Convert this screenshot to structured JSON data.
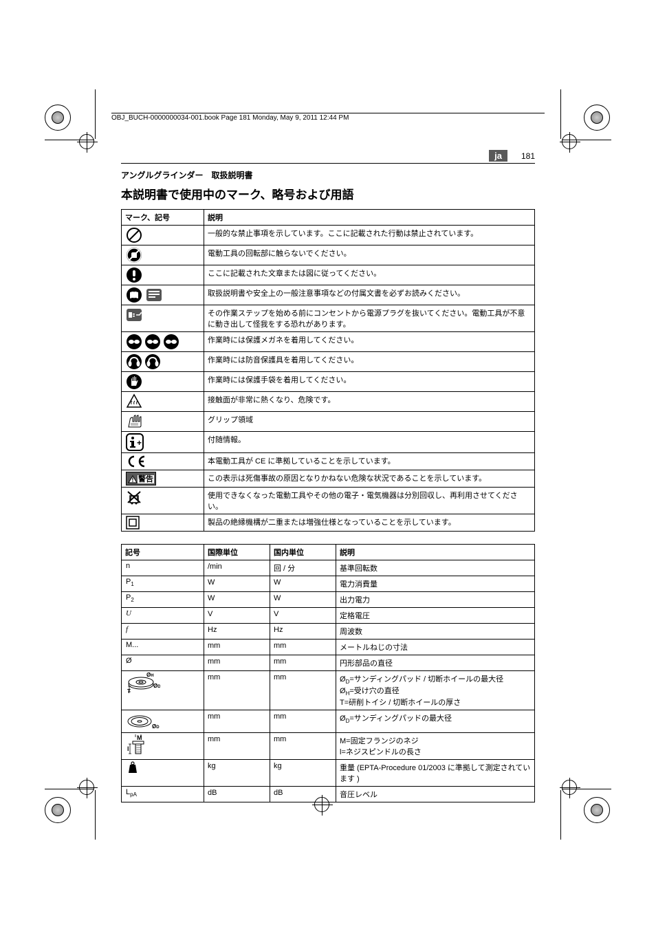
{
  "header_text": "OBJ_BUCH-0000000034-001.book  Page 181  Monday, May 9, 2011  12:44 PM",
  "lang": "ja",
  "page_number": "181",
  "subtitle": "アングルグラインダー　取扱説明書",
  "main_title": "本説明書で使用中のマーク、略号および用語",
  "table1": {
    "head": [
      "マーク、記号",
      "説明"
    ],
    "rows": [
      {
        "sym": "prohibit",
        "desc": "一般的な禁止事項を示しています。ここに記載された行動は禁止されています。"
      },
      {
        "sym": "no-touch",
        "desc": "電動工具の回転部に触らないでください。"
      },
      {
        "sym": "follow",
        "desc": "ここに記載された文章または図に従ってください。"
      },
      {
        "sym": "manual",
        "desc": "取扱説明書や安全上の一般注意事項などの付属文書を必ずお読みください。"
      },
      {
        "sym": "unplug",
        "desc": "その作業ステップを始める前にコンセントから電源プラグを抜いてください。電動工具が不意に動き出して怪我をする恐れがあります。"
      },
      {
        "sym": "goggles",
        "desc": "作業時には保護メガネを着用してください。"
      },
      {
        "sym": "earmuffs",
        "desc": "作業時には防音保護具を着用してください。"
      },
      {
        "sym": "gloves",
        "desc": "作業時には保護手袋を着用してください。"
      },
      {
        "sym": "hot",
        "desc": "接触面が非常に熱くなり、危険です。"
      },
      {
        "sym": "grip",
        "desc": "グリップ領域"
      },
      {
        "sym": "info",
        "desc": "付随情報。"
      },
      {
        "sym": "ce",
        "desc": "本電動工具が CE に準拠していることを示しています。"
      },
      {
        "sym": "warning",
        "desc": "この表示は死傷事故の原因となりかねない危険な状況であることを示しています。",
        "label": "警告"
      },
      {
        "sym": "weee",
        "desc": "使用できなくなった電動工具やその他の電子・電気機器は分別回収し、再利用させてください。"
      },
      {
        "sym": "class2",
        "desc": "製品の絶縁機構が二重または増強仕様となっていることを示しています。"
      }
    ]
  },
  "table2": {
    "head": [
      "記号",
      "国際単位",
      "国内単位",
      "説明"
    ],
    "rows": [
      {
        "sym": "n",
        "intl": "/min",
        "dom": "回 / 分",
        "desc": "基準回転数"
      },
      {
        "sym": "P1",
        "intl": "W",
        "dom": "W",
        "desc": "電力消費量"
      },
      {
        "sym": "P2",
        "intl": "W",
        "dom": "W",
        "desc": "出力電力"
      },
      {
        "sym": "U",
        "intl": "V",
        "dom": "V",
        "desc": "定格電圧"
      },
      {
        "sym": "f",
        "intl": "Hz",
        "dom": "Hz",
        "desc": "周波数"
      },
      {
        "sym": "M...",
        "intl": "mm",
        "dom": "mm",
        "desc": "メートルねじの寸法"
      },
      {
        "sym": "Ø",
        "intl": "mm",
        "dom": "mm",
        "desc": "円形部品の直径"
      },
      {
        "sym": "wheel",
        "intl": "mm",
        "dom": "mm",
        "desc": "ØD=サンディングパッド / 切断ホイールの最大径\nØH=受け穴の直径\nT=研削トイシ / 切断ホイールの厚さ"
      },
      {
        "sym": "pad",
        "intl": "mm",
        "dom": "mm",
        "desc": "ØD=サンディングパッドの最大径"
      },
      {
        "sym": "spindle",
        "intl": "mm",
        "dom": "mm",
        "desc": "M=固定フランジのネジ\nl=ネジスピンドルの長さ"
      },
      {
        "sym": "weight",
        "intl": "kg",
        "dom": "kg",
        "desc": "重量 (EPTA-Procedure 01/2003 に準拠して測定されています )"
      },
      {
        "sym": "LpA",
        "intl": "dB",
        "dom": "dB",
        "desc": "音圧レベル"
      }
    ]
  }
}
